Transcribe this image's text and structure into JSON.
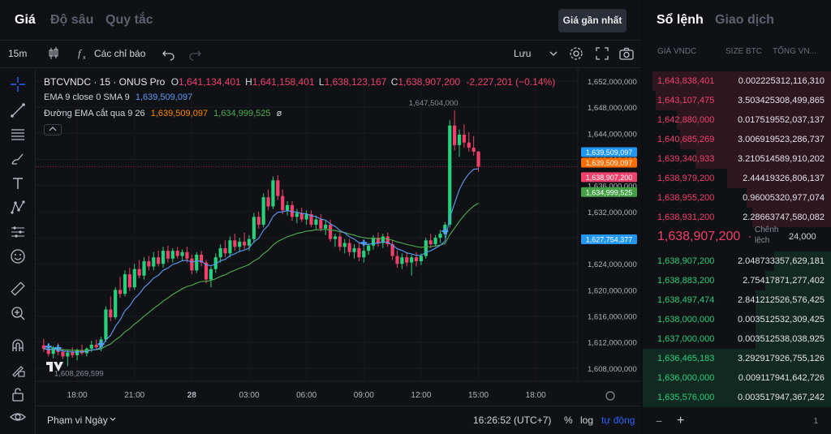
{
  "tabs": {
    "price": "Giá",
    "depth": "Độ sâu",
    "rules": "Quy tắc",
    "best_price": "Giá gần nhất"
  },
  "toolbar": {
    "interval": "15m",
    "indicators": "Các chỉ báo",
    "save": "Lưu"
  },
  "legend": {
    "symbol": "BTCVNDC · 15 · ONUS Pro",
    "o_label": "O",
    "o": "1,641,134,401",
    "h_label": "H",
    "h": "1,641,158,401",
    "l_label": "L",
    "l": "1,638,123,167",
    "c_label": "C",
    "c": "1,638,907,200",
    "change": "-2,227,201 (−0.14%)",
    "ema_line": "EMA 9 close 0 SMA 9",
    "ema_value": "1,639,509,097",
    "cross_line": "Đường EMA cắt qua 9 26",
    "cross_v1": "1,639,509,097",
    "cross_v2": "1,634,999,525",
    "cross_symbol": "ø"
  },
  "chart_data": {
    "type": "candlestick",
    "symbol": "BTCVNDC",
    "interval": "15",
    "ylim": [
      1606000000,
      1653000000
    ],
    "yticks": [
      "1,652,000,000",
      "1,648,000,000",
      "1,644,000,000",
      "1,640,000,000",
      "1,636,000,000",
      "1,632,000,000",
      "1,628,000,000",
      "1,624,000,000",
      "1,620,000,000",
      "1,616,000,000",
      "1,612,000,000",
      "1,608,000,000"
    ],
    "ytick_values": [
      1652000000,
      1648000000,
      1644000000,
      1640000000,
      1636000000,
      1632000000,
      1628000000,
      1624000000,
      1620000000,
      1616000000,
      1612000000,
      1608000000
    ],
    "xticks": [
      "18:00",
      "21:00",
      "28",
      "03:00",
      "06:00",
      "09:00",
      "12:00",
      "15:00",
      "18:00"
    ],
    "xtick_hours": [
      18,
      21,
      24,
      27,
      30,
      33,
      36,
      39,
      42
    ],
    "x_start_hour": 16.0,
    "x_end_hour": 44.2,
    "high_annotation": "1,647,504,000",
    "low_annotation": "1,608,269,599",
    "candles": [
      [
        16.25,
        1611.5,
        1612.5,
        1610.5,
        1611.0
      ],
      [
        16.5,
        1611.0,
        1611.6,
        1609.8,
        1610.2
      ],
      [
        16.75,
        1610.2,
        1611.4,
        1609.5,
        1611.2
      ],
      [
        17.0,
        1611.2,
        1611.8,
        1610.0,
        1610.5
      ],
      [
        17.25,
        1610.5,
        1611.0,
        1609.4,
        1609.8
      ],
      [
        17.5,
        1609.8,
        1610.8,
        1608.3,
        1610.4
      ],
      [
        17.75,
        1610.4,
        1611.2,
        1609.6,
        1610.0
      ],
      [
        18.0,
        1610.0,
        1611.0,
        1609.2,
        1610.8
      ],
      [
        18.25,
        1610.8,
        1611.6,
        1610.0,
        1610.3
      ],
      [
        18.5,
        1610.3,
        1611.2,
        1609.8,
        1611.0
      ],
      [
        18.75,
        1611.0,
        1612.2,
        1610.5,
        1611.6
      ],
      [
        19.0,
        1611.6,
        1612.4,
        1610.8,
        1611.2
      ],
      [
        19.25,
        1611.2,
        1612.8,
        1610.6,
        1612.4
      ],
      [
        19.5,
        1612.4,
        1617.5,
        1612.0,
        1617.0
      ],
      [
        19.75,
        1617.0,
        1619.0,
        1615.2,
        1615.8
      ],
      [
        20.0,
        1615.8,
        1620.4,
        1615.5,
        1620.0
      ],
      [
        20.25,
        1620.0,
        1622.0,
        1618.8,
        1619.4
      ],
      [
        20.5,
        1619.4,
        1623.0,
        1619.0,
        1622.4
      ],
      [
        20.75,
        1622.4,
        1623.4,
        1619.8,
        1620.4
      ],
      [
        21.0,
        1620.4,
        1624.0,
        1620.0,
        1623.2
      ],
      [
        21.25,
        1623.2,
        1624.6,
        1621.8,
        1622.2
      ],
      [
        21.5,
        1622.2,
        1625.0,
        1621.6,
        1624.4
      ],
      [
        21.75,
        1624.4,
        1625.2,
        1623.0,
        1623.6
      ],
      [
        22.0,
        1623.6,
        1625.8,
        1623.0,
        1625.0
      ],
      [
        22.25,
        1625.0,
        1626.0,
        1623.6,
        1624.0
      ],
      [
        22.5,
        1624.0,
        1626.6,
        1623.4,
        1626.0
      ],
      [
        22.75,
        1626.0,
        1626.8,
        1624.2,
        1624.8
      ],
      [
        23.0,
        1624.8,
        1626.4,
        1624.2,
        1626.0
      ],
      [
        23.25,
        1626.0,
        1626.6,
        1624.8,
        1625.2
      ],
      [
        23.5,
        1625.2,
        1626.2,
        1624.4,
        1625.8
      ],
      [
        23.75,
        1625.8,
        1626.6,
        1624.2,
        1624.8
      ],
      [
        24.0,
        1624.8,
        1625.4,
        1622.4,
        1623.0
      ],
      [
        24.25,
        1623.0,
        1625.8,
        1622.6,
        1625.4
      ],
      [
        24.5,
        1625.4,
        1626.0,
        1623.6,
        1624.2
      ],
      [
        24.75,
        1624.2,
        1624.6,
        1621.0,
        1621.6
      ],
      [
        25.0,
        1621.6,
        1623.6,
        1620.4,
        1623.2
      ],
      [
        25.25,
        1623.2,
        1625.6,
        1622.6,
        1625.0
      ],
      [
        25.5,
        1625.0,
        1627.0,
        1624.2,
        1626.4
      ],
      [
        25.75,
        1626.4,
        1627.6,
        1625.0,
        1625.6
      ],
      [
        26.0,
        1625.6,
        1628.2,
        1625.0,
        1627.6
      ],
      [
        26.25,
        1627.6,
        1628.6,
        1626.0,
        1626.6
      ],
      [
        26.5,
        1626.6,
        1628.0,
        1625.8,
        1627.4
      ],
      [
        26.75,
        1627.4,
        1628.8,
        1626.2,
        1626.8
      ],
      [
        27.0,
        1626.8,
        1628.4,
        1626.0,
        1627.8
      ],
      [
        27.25,
        1627.8,
        1631.8,
        1627.2,
        1631.2
      ],
      [
        27.5,
        1631.2,
        1632.0,
        1629.4,
        1630.0
      ],
      [
        27.75,
        1630.0,
        1634.8,
        1629.6,
        1634.2
      ],
      [
        28.0,
        1634.2,
        1635.4,
        1632.2,
        1632.8
      ],
      [
        28.25,
        1632.8,
        1637.4,
        1632.4,
        1636.8
      ],
      [
        28.5,
        1636.8,
        1637.6,
        1633.8,
        1634.4
      ],
      [
        28.75,
        1634.4,
        1635.4,
        1631.6,
        1632.2
      ],
      [
        29.0,
        1632.2,
        1633.6,
        1631.4,
        1633.0
      ],
      [
        29.25,
        1633.0,
        1633.6,
        1630.6,
        1631.2
      ],
      [
        29.5,
        1631.2,
        1632.4,
        1630.2,
        1631.8
      ],
      [
        29.75,
        1631.8,
        1632.6,
        1630.4,
        1630.8
      ],
      [
        30.0,
        1630.8,
        1632.2,
        1630.0,
        1631.6
      ],
      [
        30.25,
        1631.6,
        1632.2,
        1629.6,
        1630.0
      ],
      [
        30.5,
        1630.0,
        1631.4,
        1629.2,
        1630.8
      ],
      [
        30.75,
        1630.8,
        1631.6,
        1629.0,
        1629.4
      ],
      [
        31.0,
        1629.4,
        1630.6,
        1628.4,
        1630.0
      ],
      [
        31.25,
        1630.0,
        1630.8,
        1627.4,
        1627.8
      ],
      [
        31.5,
        1627.8,
        1628.6,
        1626.6,
        1628.2
      ],
      [
        31.75,
        1628.2,
        1628.8,
        1626.0,
        1626.6
      ],
      [
        32.0,
        1626.6,
        1627.8,
        1625.6,
        1627.2
      ],
      [
        32.25,
        1627.2,
        1627.8,
        1625.2,
        1625.8
      ],
      [
        32.5,
        1625.8,
        1627.0,
        1624.8,
        1626.4
      ],
      [
        32.75,
        1626.4,
        1627.2,
        1624.4,
        1625.0
      ],
      [
        33.0,
        1625.0,
        1626.6,
        1624.2,
        1626.0
      ],
      [
        33.25,
        1626.0,
        1627.2,
        1625.4,
        1626.8
      ],
      [
        33.5,
        1626.8,
        1628.4,
        1626.2,
        1628.0
      ],
      [
        33.75,
        1628.0,
        1628.8,
        1626.6,
        1627.2
      ],
      [
        34.0,
        1627.2,
        1628.6,
        1626.4,
        1628.2
      ],
      [
        34.25,
        1628.2,
        1628.8,
        1626.6,
        1627.0
      ],
      [
        34.5,
        1627.0,
        1627.6,
        1624.6,
        1625.2
      ],
      [
        34.75,
        1625.2,
        1626.0,
        1623.4,
        1624.0
      ],
      [
        35.0,
        1624.0,
        1625.6,
        1623.2,
        1625.0
      ],
      [
        35.25,
        1625.0,
        1625.8,
        1623.6,
        1624.2
      ],
      [
        35.5,
        1624.2,
        1625.4,
        1622.2,
        1625.0
      ],
      [
        35.75,
        1625.0,
        1625.8,
        1623.6,
        1624.4
      ],
      [
        36.0,
        1624.4,
        1625.6,
        1623.8,
        1625.2
      ],
      [
        36.25,
        1625.2,
        1628.0,
        1624.8,
        1627.6
      ],
      [
        36.5,
        1627.6,
        1628.6,
        1626.4,
        1627.0
      ],
      [
        36.75,
        1627.0,
        1628.4,
        1626.6,
        1628.0
      ],
      [
        37.0,
        1628.0,
        1629.2,
        1627.2,
        1628.6
      ],
      [
        37.25,
        1628.6,
        1630.4,
        1628.0,
        1630.0
      ],
      [
        37.5,
        1630.0,
        1646.0,
        1629.6,
        1645.2
      ],
      [
        37.75,
        1645.2,
        1647.5,
        1641.4,
        1642.2
      ],
      [
        38.0,
        1642.2,
        1644.6,
        1640.4,
        1643.8
      ],
      [
        38.25,
        1643.8,
        1645.4,
        1641.8,
        1642.6
      ],
      [
        38.5,
        1642.6,
        1644.2,
        1641.2,
        1641.8
      ],
      [
        38.75,
        1641.8,
        1643.6,
        1640.6,
        1641.2
      ],
      [
        39.0,
        1641.2,
        1641.3,
        1638.1,
        1638.9
      ]
    ],
    "series": [
      {
        "name": "EMA 9 close 0 SMA 9",
        "color": "#5b9cf6",
        "values": "ema9"
      },
      {
        "name": "Đường EMA cắt qua 9 26",
        "color": "#4caf50",
        "values": "ema26"
      }
    ],
    "price_labels": [
      {
        "value": "1,639,509,097",
        "price": 1639509097,
        "color": "#2196f3"
      },
      {
        "value": "1,639,509,097",
        "price": 1639509097,
        "color": "#ff6d00"
      },
      {
        "value": "1,638,907,200",
        "price": 1638907200,
        "color": "#f0416c"
      },
      {
        "value": "1,634,999,525",
        "price": 1634999525,
        "color": "#43a047"
      },
      {
        "value": "1,627,754,377",
        "price": 1627754377,
        "color": "#2196f3"
      }
    ]
  },
  "bottom": {
    "range": "Phạm vi Ngày",
    "time": "16:26:52 (UTC+7)",
    "pct": "%",
    "log": "log",
    "auto": "tự động"
  },
  "orderbook": {
    "tab_active": "Sổ lệnh",
    "tab_other": "Giao dịch",
    "col_price": "GIÁ VNDC",
    "col_size": "SIZE BTC",
    "col_total": "TỔNG VN...",
    "asks": [
      {
        "price": "1,643,838,401",
        "size": "0.002225",
        "total": "312,116,310",
        "depth": 0.95
      },
      {
        "price": "1,643,107,475",
        "size": "3.503425",
        "total": "308,499,865",
        "depth": 0.93
      },
      {
        "price": "1,642,880,000",
        "size": "0.017519",
        "total": "552,037,137",
        "depth": 0.82
      },
      {
        "price": "1,640,685,269",
        "size": "3.006919",
        "total": "523,286,737",
        "depth": 0.8
      },
      {
        "price": "1,639,340,933",
        "size": "3.210514",
        "total": "589,910,202",
        "depth": 0.72
      },
      {
        "price": "1,638,979,200",
        "size": "2.44419",
        "total": "326,806,137",
        "depth": 0.55
      },
      {
        "price": "1,638,955,200",
        "size": "0.960053",
        "total": "20,977,074",
        "depth": 0.45
      },
      {
        "price": "1,638,931,200",
        "size": "2.28663",
        "total": "747,580,082",
        "depth": 0.42
      }
    ],
    "mid_price": "1,638,907,200",
    "spread_label": "Chênh lệch",
    "spread_value": "24,000",
    "bids": [
      {
        "price": "1,638,907,200",
        "size": "2.048733",
        "total": "357,629,181",
        "depth": 0.3
      },
      {
        "price": "1,638,883,200",
        "size": "2.754178",
        "total": "71,277,402",
        "depth": 0.35
      },
      {
        "price": "1,638,497,474",
        "size": "2.841212",
        "total": "526,576,425",
        "depth": 0.4
      },
      {
        "price": "1,638,000,000",
        "size": "0.003512",
        "total": "532,309,425",
        "depth": 0.4
      },
      {
        "price": "1,637,000,000",
        "size": "0.003512",
        "total": "538,038,925",
        "depth": 0.4
      },
      {
        "price": "1,636,465,183",
        "size": "3.292917",
        "total": "926,755,126",
        "depth": 1.0
      },
      {
        "price": "1,636,000,000",
        "size": "0.009117",
        "total": "941,642,726",
        "depth": 1.0
      },
      {
        "price": "1,635,576,000",
        "size": "0.003517",
        "total": "947,367,242",
        "depth": 1.0
      }
    ],
    "foot_right": "1"
  }
}
